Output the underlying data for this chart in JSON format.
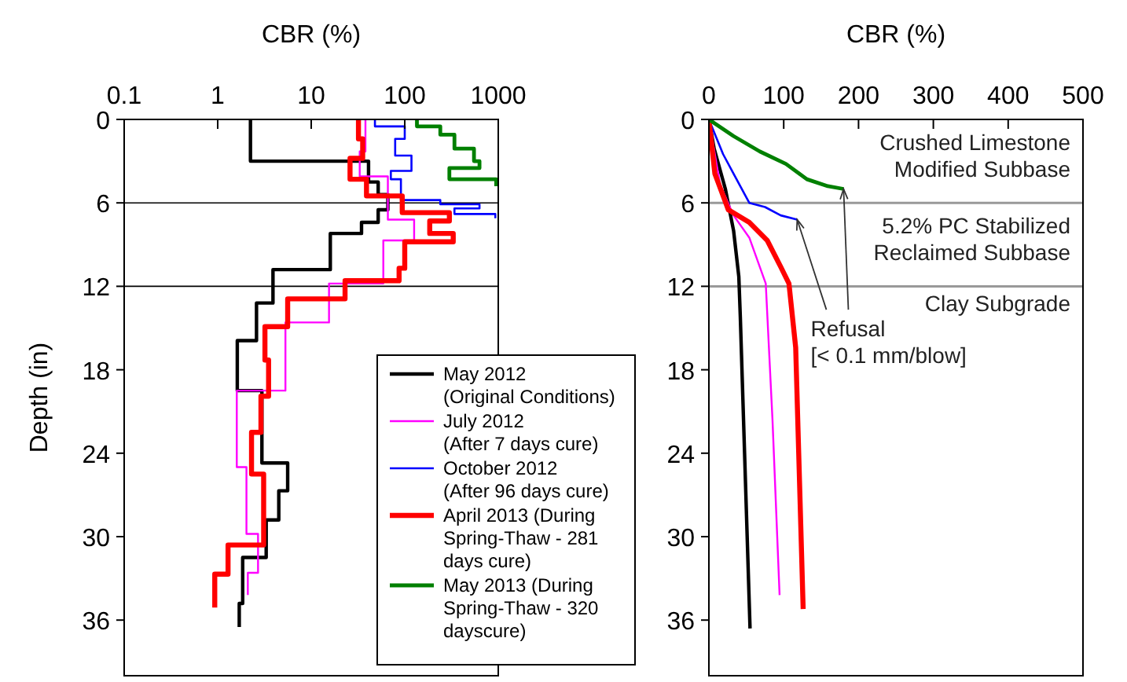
{
  "chart_data": [
    {
      "type": "line",
      "xlabel": "CBR (%)",
      "ylabel": "Depth (in)",
      "log": "x",
      "xlim": [
        0.1,
        1000
      ],
      "xticks": [
        0.1,
        1,
        10,
        100,
        1000
      ],
      "ylim": [
        40,
        0
      ],
      "yticks": [
        0,
        6,
        12,
        18,
        24,
        30,
        36
      ],
      "legend": "bottom right",
      "ref_lines": [
        {
          "axis": "y",
          "value": 6
        },
        {
          "axis": "y",
          "value": 12
        }
      ],
      "series": [
        {
          "name": "May 2012\n(Original Conditions)",
          "color": "#000000",
          "x": [
            2.24,
            2.24,
            41,
            41,
            52,
            52,
            66,
            66,
            52,
            52,
            34.5,
            34.5,
            16,
            16,
            3.9,
            3.9,
            2.6,
            2.6,
            1.62,
            1.62,
            2.97,
            2.97,
            5.6,
            5.6,
            4.5,
            4.5,
            3.3,
            3.3,
            1.85,
            1.85,
            1.7,
            1.7
          ],
          "values": [
            0,
            3.0,
            3.0,
            4.5,
            4.5,
            5.4,
            5.4,
            6.5,
            6.5,
            7.4,
            7.4,
            8.2,
            8.2,
            10.8,
            10.8,
            13.2,
            13.2,
            15.9,
            15.9,
            19.5,
            19.5,
            24.7,
            24.7,
            26.7,
            26.7,
            28.8,
            28.8,
            31.5,
            31.5,
            34.8,
            34.8,
            36.5
          ]
        },
        {
          "name": "July 2012\n(After 7 days cure)",
          "color": "#ff00ff",
          "x": [
            38,
            38,
            33,
            33,
            66,
            66,
            126,
            126,
            59,
            59,
            15.5,
            15.5,
            5.3,
            5.3,
            1.6,
            1.6,
            2.03,
            2.03,
            2.7,
            2.7,
            2.1,
            2.1
          ],
          "values": [
            0,
            2.3,
            2.3,
            4.1,
            4.1,
            7.2,
            7.2,
            8.7,
            8.7,
            11.8,
            11.8,
            14.6,
            14.6,
            19.5,
            19.5,
            25.0,
            25.0,
            29.8,
            29.8,
            32.6,
            32.6,
            34.2
          ]
        },
        {
          "name": "October 2012\n(After 96 days cure)",
          "color": "#0000ff",
          "x": [
            48,
            48,
            100,
            100,
            79,
            79,
            118,
            118,
            71,
            71,
            91,
            91,
            240,
            240,
            630,
            630,
            340,
            340,
            930,
            930
          ],
          "values": [
            0,
            0.5,
            0.5,
            1.4,
            1.4,
            2.6,
            2.6,
            3.7,
            3.7,
            4.3,
            4.3,
            5.8,
            5.8,
            6.1,
            6.1,
            6.4,
            6.4,
            6.8,
            6.8,
            7.1
          ]
        },
        {
          "name": "April 2013 (During\nSpring-Thaw - 281\ndays cure)",
          "color": "#ff0000",
          "x": [
            32,
            32,
            35.5,
            35.5,
            26,
            26,
            39,
            39,
            94,
            94,
            300,
            300,
            185,
            185,
            330,
            330,
            100,
            100,
            87,
            87,
            23,
            23,
            5.6,
            5.6,
            3.2,
            3.2,
            3.5,
            3.5,
            2.9,
            2.9,
            2.3,
            2.3,
            3.1,
            3.1,
            1.29,
            1.29,
            0.93,
            0.93
          ],
          "values": [
            0,
            1.4,
            1.4,
            2.8,
            2.8,
            4.3,
            4.3,
            5.5,
            5.5,
            6.7,
            6.7,
            7.3,
            7.3,
            8.2,
            8.2,
            8.8,
            8.8,
            10.7,
            10.7,
            11.6,
            11.6,
            12.9,
            12.9,
            14.9,
            14.9,
            17.3,
            17.3,
            19.9,
            19.9,
            22.5,
            22.5,
            25.5,
            25.5,
            30.6,
            30.6,
            32.7,
            32.7,
            35.1
          ]
        },
        {
          "name": "May 2013 (During\nSpring-Thaw - 320\ndayscure)",
          "color": "#008000",
          "x": [
            135,
            135,
            240,
            240,
            340,
            340,
            550,
            550,
            630,
            630,
            300,
            300,
            950,
            950
          ],
          "values": [
            0,
            0.5,
            0.5,
            1.1,
            1.1,
            2.1,
            2.1,
            3.0,
            3.0,
            3.5,
            3.5,
            4.3,
            4.3,
            4.8
          ]
        }
      ]
    },
    {
      "type": "line",
      "xlabel": "CBR (%)",
      "xlim": [
        0,
        500
      ],
      "xticks": [
        0,
        100,
        200,
        300,
        400,
        500
      ],
      "ylim": [
        40,
        0
      ],
      "yticks": [
        0,
        6,
        12,
        18,
        24,
        30,
        36
      ],
      "legend": false,
      "ref_lines": [
        {
          "axis": "y",
          "value": 6
        },
        {
          "axis": "y",
          "value": 12
        }
      ],
      "annotations": [
        "Crushed Limestone\nModified Subbase",
        "5.2% PC Stabilized\nReclaimed Subbase",
        "Clay Subgrade",
        {
          "text": "Refusal\n[< 0.1 mm/blow]",
          "x": 180,
          "y": 5
        }
      ],
      "series": [
        {
          "color": "#000000",
          "x": [
            0,
            7,
            22,
            33,
            40,
            42,
            55
          ],
          "values": [
            0,
            2.1,
            5.0,
            8.0,
            11.3,
            14.2,
            36.6
          ]
        },
        {
          "color": "#ff00ff",
          "x": [
            0,
            15,
            33,
            54,
            76,
            85,
            94.5
          ],
          "values": [
            0,
            4.7,
            6.9,
            8.5,
            11.8,
            21.6,
            34.2
          ]
        },
        {
          "color": "#0000ff",
          "x": [
            0,
            19,
            33,
            54,
            75,
            96,
            118
          ],
          "values": [
            0,
            2.5,
            3.9,
            6.0,
            6.3,
            6.9,
            7.2
          ]
        },
        {
          "color": "#ff0000",
          "x": [
            0,
            8,
            26,
            54,
            78,
            96,
            107,
            116,
            126
          ],
          "values": [
            0,
            3.9,
            6.5,
            7.4,
            8.7,
            10.6,
            11.8,
            16.4,
            35.2
          ]
        },
        {
          "color": "#008000",
          "x": [
            0,
            33,
            68,
            103,
            131,
            159,
            180
          ],
          "values": [
            0,
            1.2,
            2.3,
            3.2,
            4.3,
            4.8,
            5.0
          ]
        }
      ]
    }
  ]
}
